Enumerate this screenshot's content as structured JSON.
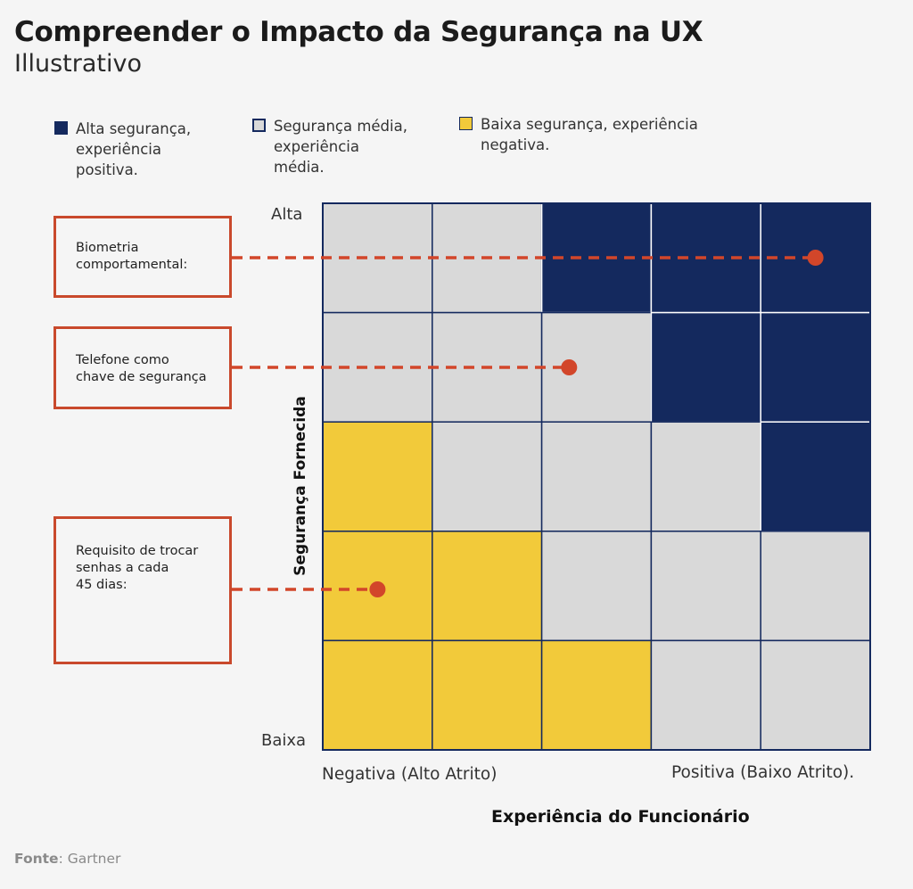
{
  "title": "Compreender o Impacto da Segurança na UX",
  "subtitle": "Illustrativo",
  "colors": {
    "high": "#14295e",
    "medium": "#d9d9d9",
    "low": "#f2ca3a",
    "accent": "#d2462a",
    "gridline": "#14295e"
  },
  "legend": [
    {
      "key": "high",
      "lines": [
        "Alta segurança,",
        "experiência",
        "positiva."
      ]
    },
    {
      "key": "medium",
      "lines": [
        "Segurança média,",
        "experiência",
        "média."
      ]
    },
    {
      "key": "low",
      "lines": [
        "Baixa segurança, experiência",
        "negativa."
      ]
    }
  ],
  "matrix": {
    "rows": [
      [
        "medium",
        "medium",
        "high",
        "high",
        "high"
      ],
      [
        "medium",
        "medium",
        "medium",
        "high",
        "high"
      ],
      [
        "low",
        "medium",
        "medium",
        "medium",
        "high"
      ],
      [
        "low",
        "low",
        "medium",
        "medium",
        "medium"
      ],
      [
        "low",
        "low",
        "low",
        "medium",
        "medium"
      ]
    ]
  },
  "axes": {
    "y_top": "Alta",
    "y_bottom": "Baixa",
    "y_title": "Segurança Fornecida",
    "x_left": "Negativa (Alto Atrito)",
    "x_right": "Positiva (Baixo Atrito).",
    "x_title": "Experiência do Funcionário"
  },
  "callouts": [
    {
      "lines": [
        "Biometria",
        "comportamental:"
      ],
      "point": {
        "col": 4.5,
        "row": 0.5
      }
    },
    {
      "lines": [
        "Telefone como",
        "chave de segurança"
      ],
      "point": {
        "col": 2.25,
        "row": 1.5
      }
    },
    {
      "lines": [
        "Requisito de trocar",
        "senhas a cada",
        "45 dias:"
      ],
      "point": {
        "col": 0.5,
        "row": 3.5
      }
    }
  ],
  "source": {
    "label": "Fonte",
    "value": ": Gartner"
  }
}
